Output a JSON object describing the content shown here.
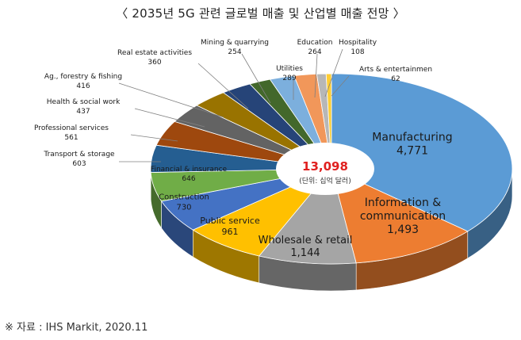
{
  "page": {
    "title": "〈 2035년 5G 관련 글로벌 매출 및 산업별 매출 전망 〉",
    "source": "※ 자료 : IHS Markit, 2020.11"
  },
  "chart_data": {
    "type": "pie",
    "title": "〈 2035년 5G 관련 글로벌 매출 및 산업별 매출 전망 〉",
    "total_value": "13,098",
    "total_unit": "(단위: 십억 달러)",
    "slices": [
      {
        "label": "Manufacturing",
        "display": [
          "Manufacturing",
          "4,771"
        ],
        "value": 4771,
        "color": "#5B9BD5",
        "label_inside": true
      },
      {
        "label": "Information & communication",
        "display": [
          "Information &",
          "communication",
          "1,493"
        ],
        "value": 1493,
        "color": "#ED7D31",
        "label_inside": true
      },
      {
        "label": "Wholesale & retail",
        "display": [
          "Wholesale & retail",
          "1,144"
        ],
        "value": 1144,
        "color": "#A5A5A5",
        "label_inside": true
      },
      {
        "label": "Public service",
        "display": [
          "Public service",
          "961"
        ],
        "value": 961,
        "color": "#FFC000",
        "label_inside": true
      },
      {
        "label": "Construction",
        "display": [
          "Construction",
          "730"
        ],
        "value": 730,
        "color": "#4472C4",
        "label_inside": true
      },
      {
        "label": "Financial & insurance",
        "display": [
          "Financial & insurance",
          "646"
        ],
        "value": 646,
        "color": "#70AD47",
        "label_inside": true
      },
      {
        "label": "Transport & storage",
        "display": [
          "Transport & storage",
          "603"
        ],
        "value": 603,
        "color": "#255E91",
        "label_inside": false
      },
      {
        "label": "Professional services",
        "display": [
          "Professional services",
          "561"
        ],
        "value": 561,
        "color": "#9E480E",
        "label_inside": false
      },
      {
        "label": "Health & social work",
        "display": [
          "Health & social work",
          "437"
        ],
        "value": 437,
        "color": "#636363",
        "label_inside": false
      },
      {
        "label": "Ag., forestry & fishing",
        "display": [
          "Ag., forestry & fishing",
          "416"
        ],
        "value": 416,
        "color": "#997300",
        "label_inside": false
      },
      {
        "label": "Real estate activities",
        "display": [
          "Real estate activities",
          "360"
        ],
        "value": 360,
        "color": "#264478",
        "label_inside": false
      },
      {
        "label": "Mining & quarrying",
        "display": [
          "Mining & quarrying",
          "254"
        ],
        "value": 254,
        "color": "#43682B",
        "label_inside": false
      },
      {
        "label": "Utilities",
        "display": [
          "Utilities",
          "289"
        ],
        "value": 289,
        "color": "#7CAFDD",
        "label_inside": false
      },
      {
        "label": "Education",
        "display": [
          "Education",
          "264"
        ],
        "value": 264,
        "color": "#F1975A",
        "label_inside": false
      },
      {
        "label": "Hospitality",
        "display": [
          "Hospitality",
          "108"
        ],
        "value": 108,
        "color": "#B7B7B7",
        "label_inside": false
      },
      {
        "label": "Arts & entertainmen",
        "display": [
          "Arts & entertainmen",
          "62"
        ],
        "value": 62,
        "color": "#FFCD33",
        "label_inside": false
      }
    ]
  }
}
